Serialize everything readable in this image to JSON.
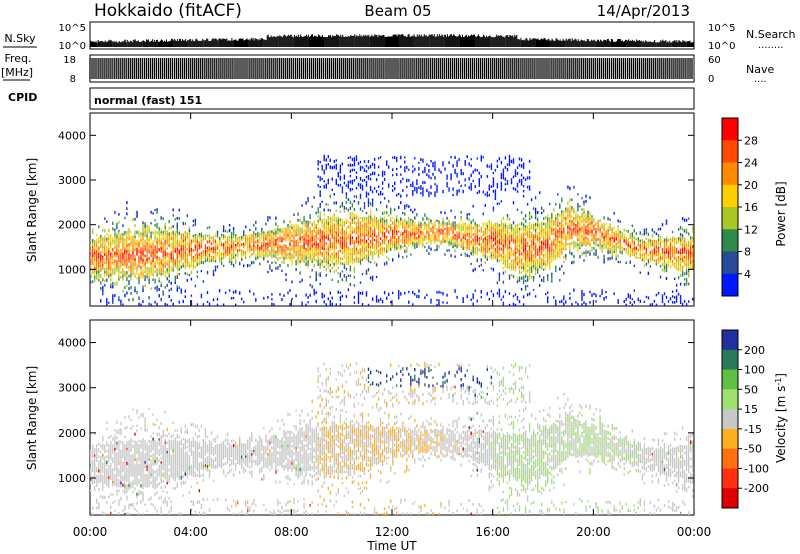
{
  "header": {
    "station": "Hokkaido (fitACF)",
    "beam": "Beam 05",
    "date": "14/Apr/2013"
  },
  "strips": {
    "nsky_label": "N.Sky",
    "nsky_ticks": [
      "10^5",
      "10^0"
    ],
    "nsearch_label": "N.Search",
    "nsearch_dots": "........",
    "freq_label_1": "Freq.",
    "freq_label_2": "[MHz]",
    "freq_ticks": [
      "18",
      "8"
    ],
    "nave_ticks": [
      "60",
      "0"
    ],
    "nave_label": "Nave",
    "nave_dots": "....",
    "cpid_label": "CPID",
    "cpid_text": "normal (fast) 151"
  },
  "axes": {
    "xlabel": "Time UT",
    "ylabel": "Slant Range [km]",
    "x_ticks": [
      "00:00",
      "04:00",
      "08:00",
      "12:00",
      "16:00",
      "20:00",
      "00:00"
    ],
    "x_tick_hours": [
      0,
      4,
      8,
      12,
      16,
      20,
      24
    ],
    "y_ticks": [
      "1000",
      "2000",
      "3000",
      "4000"
    ],
    "y_tick_values": [
      1000,
      2000,
      3000,
      4000
    ],
    "ylim": [
      180,
      4500
    ],
    "xlim_hours": [
      0,
      24
    ]
  },
  "colorbars": {
    "power": {
      "label": "Power [dB]",
      "ticks": [
        "28",
        "24",
        "20",
        "16",
        "12",
        "8",
        "4"
      ],
      "colors": [
        "#ff0000",
        "#ff4b00",
        "#ff8c00",
        "#ffd000",
        "#a8c828",
        "#2f8a4b",
        "#2a4a9a",
        "#0018ff"
      ]
    },
    "velocity": {
      "label": "Velocity [m s",
      "label_sup": "-1",
      "label_end": "]",
      "ticks": [
        "200",
        "100",
        "50",
        "15",
        "-15",
        "-50",
        "-100",
        "-200"
      ],
      "colors": [
        "#2030a0",
        "#2a7a5a",
        "#60c040",
        "#a0e070",
        "#c8c8c8",
        "#ffb020",
        "#ff7010",
        "#ff3010",
        "#e00000"
      ]
    }
  },
  "chart_data": [
    {
      "type": "heatmap",
      "title": "",
      "xlabel": "Time UT",
      "ylabel": "Slant Range [km]",
      "z_label": "Power [dB]",
      "xlim": [
        0,
        24
      ],
      "ylim": [
        180,
        4500
      ],
      "band_center_km": [
        [
          0,
          1250
        ],
        [
          2,
          1300
        ],
        [
          4,
          1400
        ],
        [
          6,
          1500
        ],
        [
          8,
          1550
        ],
        [
          10,
          1600
        ],
        [
          12,
          1750
        ],
        [
          14,
          1800
        ],
        [
          16,
          1600
        ],
        [
          17,
          1400
        ],
        [
          18,
          1500
        ],
        [
          19,
          1900
        ],
        [
          20,
          1800
        ],
        [
          22,
          1400
        ],
        [
          24,
          1300
        ]
      ]
    },
    {
      "type": "heatmap",
      "title": "",
      "xlabel": "Time UT",
      "ylabel": "Slant Range [km]",
      "z_label": "Velocity [m s-1]",
      "xlim": [
        0,
        24
      ],
      "ylim": [
        180,
        4500
      ]
    },
    {
      "type": "line",
      "title": "",
      "ylabel": "N.Sky",
      "y_ticks": [
        "10^0",
        "10^5"
      ]
    },
    {
      "type": "bar",
      "title": "",
      "ylabel": "Freq. [MHz]",
      "ylim": [
        8,
        18
      ],
      "y2label": "Nave",
      "y2lim": [
        0,
        60
      ]
    }
  ]
}
